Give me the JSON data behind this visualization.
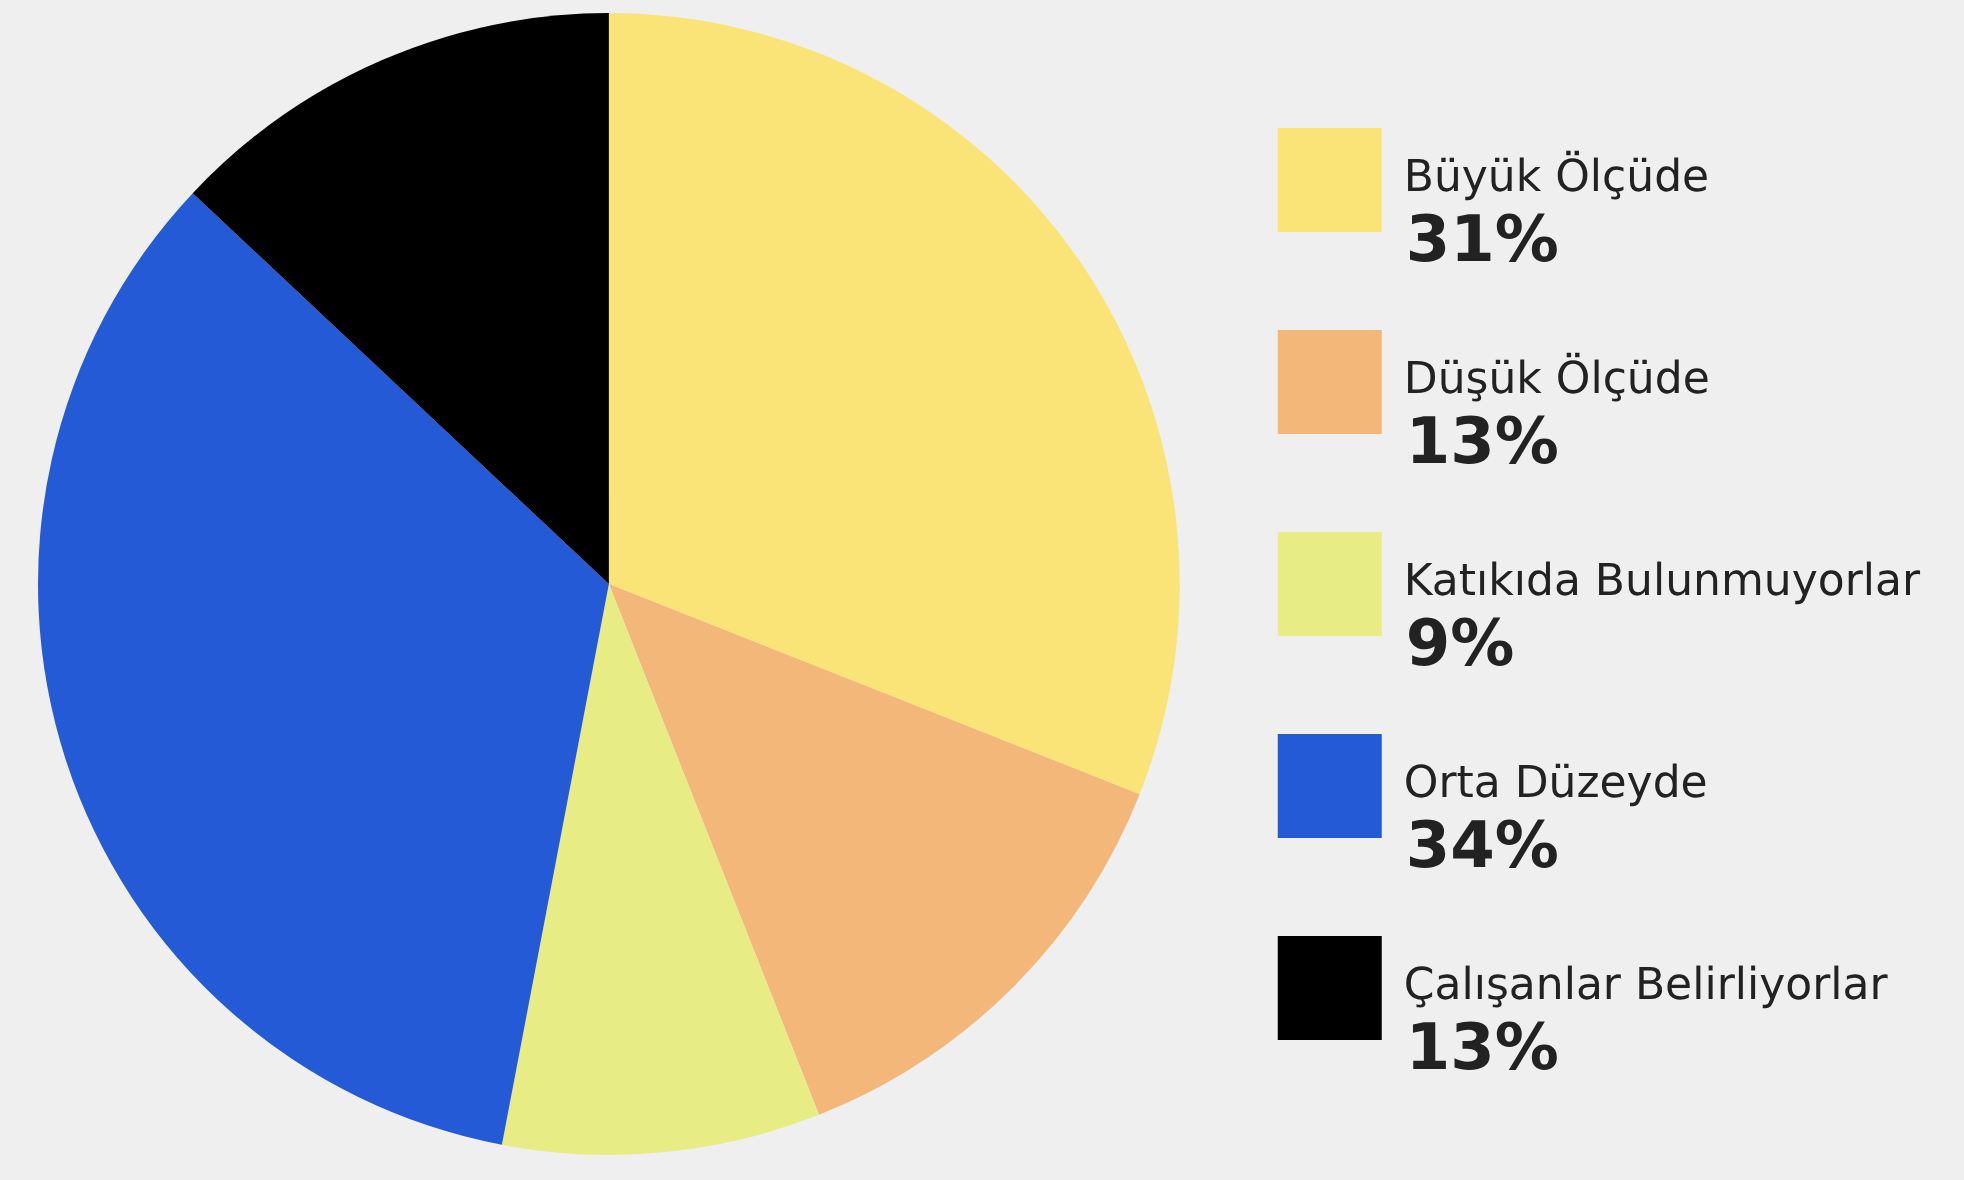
{
  "chart_data": {
    "type": "pie",
    "categories": [
      "Büyük Ölçüde",
      "Düşük Ölçüde",
      "Katıkıda Bulunmuyorlar",
      "Orta Düzeyde",
      "Çalışanlar Belirliyorlar"
    ],
    "values": [
      31,
      13,
      9,
      34,
      13
    ],
    "value_labels": [
      "31%",
      "13%",
      "9%",
      "34%",
      "13%"
    ],
    "colors": [
      "#fae478",
      "#f4b77a",
      "#e8ec84",
      "#245ad6",
      "#000000"
    ],
    "legend": "right"
  }
}
